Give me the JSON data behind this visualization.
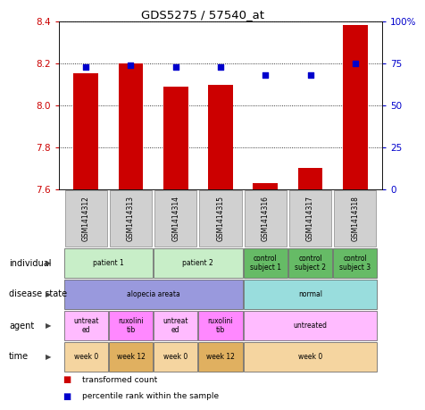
{
  "title": "GDS5275 / 57540_at",
  "samples": [
    "GSM1414312",
    "GSM1414313",
    "GSM1414314",
    "GSM1414315",
    "GSM1414316",
    "GSM1414317",
    "GSM1414318"
  ],
  "bar_values": [
    8.155,
    8.2,
    8.09,
    8.1,
    7.63,
    7.7,
    8.385
  ],
  "dot_values": [
    73,
    74,
    73,
    73,
    68,
    68,
    75
  ],
  "ylim_left": [
    7.6,
    8.4
  ],
  "ylim_right": [
    0,
    100
  ],
  "yticks_left": [
    7.6,
    7.8,
    8.0,
    8.2,
    8.4
  ],
  "yticks_right": [
    0,
    25,
    50,
    75,
    100
  ],
  "bar_color": "#cc0000",
  "dot_color": "#0000cc",
  "bar_bottom": 7.6,
  "annotation_rows": [
    {
      "label": "individual",
      "cells": [
        {
          "text": "patient 1",
          "colspan": 2,
          "color": "#c8eec8"
        },
        {
          "text": "patient 2",
          "colspan": 2,
          "color": "#c8eec8"
        },
        {
          "text": "control\nsubject 1",
          "colspan": 1,
          "color": "#66bb66"
        },
        {
          "text": "control\nsubject 2",
          "colspan": 1,
          "color": "#66bb66"
        },
        {
          "text": "control\nsubject 3",
          "colspan": 1,
          "color": "#66bb66"
        }
      ]
    },
    {
      "label": "disease state",
      "cells": [
        {
          "text": "alopecia areata",
          "colspan": 4,
          "color": "#9999dd"
        },
        {
          "text": "normal",
          "colspan": 3,
          "color": "#99dddd"
        }
      ]
    },
    {
      "label": "agent",
      "cells": [
        {
          "text": "untreat\ned",
          "colspan": 1,
          "color": "#ffbbff"
        },
        {
          "text": "ruxolini\ntib",
          "colspan": 1,
          "color": "#ff88ff"
        },
        {
          "text": "untreat\ned",
          "colspan": 1,
          "color": "#ffbbff"
        },
        {
          "text": "ruxolini\ntib",
          "colspan": 1,
          "color": "#ff88ff"
        },
        {
          "text": "untreated",
          "colspan": 3,
          "color": "#ffbbff"
        }
      ]
    },
    {
      "label": "time",
      "cells": [
        {
          "text": "week 0",
          "colspan": 1,
          "color": "#f5d5a0"
        },
        {
          "text": "week 12",
          "colspan": 1,
          "color": "#e0b060"
        },
        {
          "text": "week 0",
          "colspan": 1,
          "color": "#f5d5a0"
        },
        {
          "text": "week 12",
          "colspan": 1,
          "color": "#e0b060"
        },
        {
          "text": "week 0",
          "colspan": 3,
          "color": "#f5d5a0"
        }
      ]
    }
  ],
  "legend_items": [
    "transformed count",
    "percentile rank within the sample"
  ]
}
